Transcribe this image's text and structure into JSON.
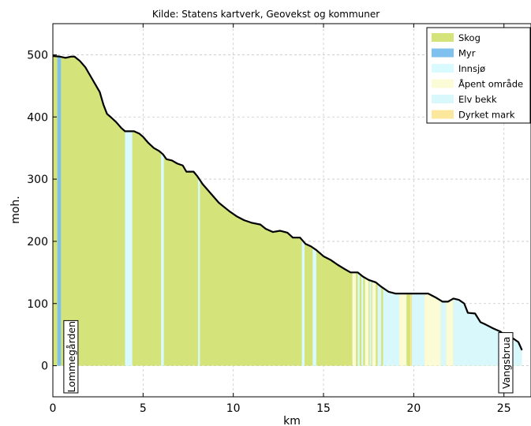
{
  "chart_data": {
    "type": "area",
    "title": "Kilde: Statens kartverk, Geovekst og kommuner",
    "xlabel": "km",
    "ylabel": "moh.",
    "xlim": [
      0,
      26.5
    ],
    "ylim": [
      -50,
      550
    ],
    "xticks": [
      0,
      5,
      10,
      15,
      20,
      25
    ],
    "yticks": [
      0,
      100,
      200,
      300,
      400,
      500
    ],
    "grid": true,
    "legend_position": "top-right",
    "colors": {
      "Skog": "#d4e37a",
      "Myr": "#7ec0ee",
      "Innsjø": "#d9fbff",
      "Åpent område": "#fbfbd6",
      "Elv bekk": "#d9f8fb",
      "Dyrket mark": "#fbe89c",
      "profile": "#000000"
    },
    "legend": [
      "Skog",
      "Myr",
      "Innsjø",
      "Åpent område",
      "Elv bekk",
      "Dyrket mark"
    ],
    "profile": [
      [
        0.0,
        498
      ],
      [
        0.4,
        497
      ],
      [
        0.7,
        495
      ],
      [
        1.0,
        497
      ],
      [
        1.2,
        497
      ],
      [
        1.5,
        490
      ],
      [
        1.8,
        480
      ],
      [
        2.1,
        465
      ],
      [
        2.4,
        450
      ],
      [
        2.6,
        440
      ],
      [
        2.8,
        420
      ],
      [
        3.0,
        405
      ],
      [
        3.2,
        400
      ],
      [
        3.5,
        392
      ],
      [
        3.8,
        382
      ],
      [
        4.0,
        377
      ],
      [
        4.5,
        377
      ],
      [
        4.8,
        373
      ],
      [
        5.0,
        368
      ],
      [
        5.3,
        358
      ],
      [
        5.6,
        350
      ],
      [
        5.9,
        345
      ],
      [
        6.1,
        340
      ],
      [
        6.3,
        332
      ],
      [
        6.6,
        330
      ],
      [
        6.9,
        325
      ],
      [
        7.2,
        322
      ],
      [
        7.4,
        312
      ],
      [
        7.8,
        312
      ],
      [
        8.0,
        305
      ],
      [
        8.3,
        292
      ],
      [
        8.6,
        282
      ],
      [
        8.9,
        272
      ],
      [
        9.2,
        262
      ],
      [
        9.5,
        255
      ],
      [
        9.8,
        248
      ],
      [
        10.2,
        240
      ],
      [
        10.6,
        234
      ],
      [
        11.0,
        230
      ],
      [
        11.5,
        227
      ],
      [
        11.8,
        220
      ],
      [
        12.2,
        215
      ],
      [
        12.6,
        217
      ],
      [
        13.0,
        214
      ],
      [
        13.3,
        206
      ],
      [
        13.7,
        206
      ],
      [
        14.0,
        196
      ],
      [
        14.3,
        192
      ],
      [
        14.6,
        186
      ],
      [
        15.0,
        176
      ],
      [
        15.4,
        170
      ],
      [
        15.8,
        162
      ],
      [
        16.2,
        155
      ],
      [
        16.5,
        150
      ],
      [
        16.9,
        150
      ],
      [
        17.2,
        143
      ],
      [
        17.5,
        138
      ],
      [
        17.9,
        134
      ],
      [
        18.2,
        127
      ],
      [
        18.6,
        119
      ],
      [
        19.0,
        116
      ],
      [
        19.5,
        116
      ],
      [
        20.0,
        116
      ],
      [
        20.5,
        116
      ],
      [
        20.8,
        116
      ],
      [
        21.2,
        110
      ],
      [
        21.6,
        103
      ],
      [
        21.9,
        103
      ],
      [
        22.2,
        108
      ],
      [
        22.5,
        106
      ],
      [
        22.8,
        100
      ],
      [
        23.0,
        85
      ],
      [
        23.4,
        84
      ],
      [
        23.7,
        70
      ],
      [
        24.0,
        66
      ],
      [
        24.4,
        60
      ],
      [
        24.8,
        55
      ],
      [
        25.1,
        48
      ],
      [
        25.5,
        44
      ],
      [
        25.8,
        38
      ],
      [
        26.0,
        25
      ]
    ],
    "segments": [
      {
        "type": "Myr",
        "x0": 0.25,
        "x1": 0.45
      },
      {
        "type": "Innsjø",
        "x0": 4.0,
        "x1": 4.4
      },
      {
        "type": "Innsjø",
        "x0": 6.0,
        "x1": 6.15
      },
      {
        "type": "Innsjø",
        "x0": 8.05,
        "x1": 8.15
      },
      {
        "type": "Innsjø",
        "x0": 13.8,
        "x1": 13.95
      },
      {
        "type": "Innsjø",
        "x0": 14.4,
        "x1": 14.6
      },
      {
        "type": "Åpent område",
        "x0": 16.6,
        "x1": 16.8
      },
      {
        "type": "Innsjø",
        "x0": 16.9,
        "x1": 17.0
      },
      {
        "type": "Elv bekk",
        "x0": 17.1,
        "x1": 17.2
      },
      {
        "type": "Åpent område",
        "x0": 17.3,
        "x1": 17.5
      },
      {
        "type": "Elv bekk",
        "x0": 17.55,
        "x1": 17.65
      },
      {
        "type": "Åpent område",
        "x0": 17.7,
        "x1": 17.9
      },
      {
        "type": "Elv bekk",
        "x0": 18.0,
        "x1": 18.2
      },
      {
        "type": "Elv bekk",
        "x0": 18.3,
        "x1": 19.2
      },
      {
        "type": "Åpent område",
        "x0": 19.2,
        "x1": 19.6
      },
      {
        "type": "Dyrket mark",
        "x0": 19.8,
        "x1": 19.88
      },
      {
        "type": "Elv bekk",
        "x0": 19.9,
        "x1": 20.6
      },
      {
        "type": "Åpent område",
        "x0": 20.6,
        "x1": 21.5
      },
      {
        "type": "Elv bekk",
        "x0": 21.5,
        "x1": 21.8
      },
      {
        "type": "Åpent område",
        "x0": 21.8,
        "x1": 22.2
      },
      {
        "type": "Elv bekk",
        "x0": 22.2,
        "x1": 26.0
      }
    ],
    "annotations": [
      {
        "text": "Lommegården",
        "x": 1.0
      },
      {
        "text": "Vangsbrua",
        "x": 25.1
      }
    ]
  }
}
